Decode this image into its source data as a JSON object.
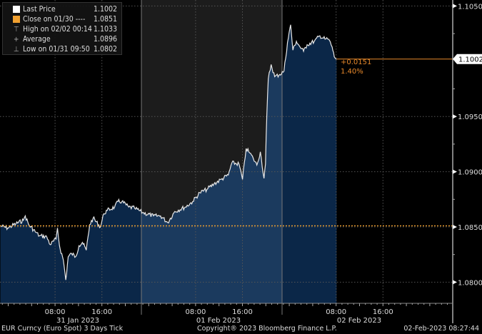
{
  "chart_data": {
    "type": "area",
    "series": [
      {
        "name": "Last Price",
        "points": [
          [
            "2023-01-30T22:40",
            1.0851
          ],
          [
            "2023-01-30T23:55",
            1.0849
          ],
          [
            "2023-01-31T01:20",
            1.0853
          ],
          [
            "2023-01-31T02:35",
            1.0856
          ],
          [
            "2023-01-31T02:55",
            1.086
          ],
          [
            "2023-01-31T03:30",
            1.0852
          ],
          [
            "2023-01-31T04:45",
            1.0845
          ],
          [
            "2023-01-31T05:20",
            1.0842
          ],
          [
            "2023-01-31T06:35",
            1.0841
          ],
          [
            "2023-01-31T07:10",
            1.0834
          ],
          [
            "2023-01-31T08:10",
            1.0839
          ],
          [
            "2023-01-31T08:25",
            1.0849
          ],
          [
            "2023-01-31T08:45",
            1.0833
          ],
          [
            "2023-01-31T09:25",
            1.082
          ],
          [
            "2023-01-31T09:50",
            1.0802
          ],
          [
            "2023-01-31T10:15",
            1.0823
          ],
          [
            "2023-01-31T10:50",
            1.0826
          ],
          [
            "2023-01-31T11:30",
            1.0823
          ],
          [
            "2023-01-31T12:05",
            1.0833
          ],
          [
            "2023-01-31T12:40",
            1.0836
          ],
          [
            "2023-01-31T13:20",
            1.0829
          ],
          [
            "2023-01-31T13:55",
            1.0852
          ],
          [
            "2023-01-31T14:30",
            1.0858
          ],
          [
            "2023-01-31T15:45",
            1.085
          ],
          [
            "2023-01-31T16:20",
            1.0862
          ],
          [
            "2023-01-31T16:55",
            1.0865
          ],
          [
            "2023-01-31T18:10",
            1.0868
          ],
          [
            "2023-01-31T18:45",
            1.0873
          ],
          [
            "2023-01-31T19:25",
            1.0873
          ],
          [
            "2023-01-31T20:35",
            1.0868
          ],
          [
            "2023-01-31T21:35",
            1.0867
          ],
          [
            "2023-01-31T22:58",
            1.0863
          ],
          [
            "2023-02-01T00:48",
            1.086
          ],
          [
            "2023-02-01T02:01",
            1.086
          ],
          [
            "2023-02-01T03:14",
            1.0854
          ],
          [
            "2023-02-01T04:27",
            1.0864
          ],
          [
            "2023-02-01T06:16",
            1.0868
          ],
          [
            "2023-02-01T07:30",
            1.0873
          ],
          [
            "2023-02-01T08:43",
            1.0881
          ],
          [
            "2023-02-01T09:56",
            1.0884
          ],
          [
            "2023-02-01T11:09",
            1.0889
          ],
          [
            "2023-02-01T12:22",
            1.0893
          ],
          [
            "2023-02-01T13:35",
            1.0897
          ],
          [
            "2023-02-01T14:12",
            1.0908
          ],
          [
            "2023-02-01T15:25",
            1.0907
          ],
          [
            "2023-02-01T16:01",
            1.0893
          ],
          [
            "2023-02-01T16:38",
            1.0921
          ],
          [
            "2023-02-01T17:15",
            1.0917
          ],
          [
            "2023-02-01T17:51",
            1.0912
          ],
          [
            "2023-02-01T18:28",
            1.0906
          ],
          [
            "2023-02-01T19:04",
            1.0918
          ],
          [
            "2023-02-01T19:41",
            1.0894
          ],
          [
            "2023-02-01T19:56",
            1.0907
          ],
          [
            "2023-02-01T20:10",
            1.0952
          ],
          [
            "2023-02-01T20:25",
            1.0984
          ],
          [
            "2023-02-01T20:54",
            1.0997
          ],
          [
            "2023-02-01T21:31",
            1.0986
          ],
          [
            "2023-02-01T22:22",
            1.0988
          ],
          [
            "2023-02-01T23:06",
            1.0991
          ],
          [
            "2023-02-01T23:42",
            1.1017
          ],
          [
            "2023-02-02T00:14",
            1.1033
          ],
          [
            "2023-02-02T00:37",
            1.101
          ],
          [
            "2023-02-02T01:13",
            1.1018
          ],
          [
            "2023-02-02T01:50",
            1.1013
          ],
          [
            "2023-02-02T02:26",
            1.1009
          ],
          [
            "2023-02-02T03:03",
            1.1015
          ],
          [
            "2023-02-02T04:16",
            1.1018
          ],
          [
            "2023-02-02T05:14",
            1.1023
          ],
          [
            "2023-02-02T06:06",
            1.102
          ],
          [
            "2023-02-02T06:42",
            1.102
          ],
          [
            "2023-02-02T07:19",
            1.1013
          ],
          [
            "2023-02-02T07:41",
            1.1004
          ],
          [
            "2023-02-02T08:05",
            1.1002
          ]
        ]
      }
    ],
    "ylim": [
      1.0785,
      1.1055
    ],
    "yticks": [
      "1.1050",
      "1.0950",
      "1.0900",
      "1.0850",
      "1.0800"
    ],
    "xticks": [
      {
        "label": "08:00",
        "t": "2023-01-31T08:00"
      },
      {
        "label": "16:00",
        "t": "2023-01-31T16:00"
      },
      {
        "label": "08:00",
        "t": "2023-02-01T08:00"
      },
      {
        "label": "16:00",
        "t": "2023-02-01T16:00"
      },
      {
        "label": "08:00",
        "t": "2023-02-02T08:00"
      },
      {
        "label": "16:00",
        "t": "2023-02-02T16:00"
      }
    ],
    "date_labels": [
      "31 Jan 2023",
      "01 Feb 2023",
      "02 Feb 2023"
    ],
    "close_line": 1.0851,
    "last_price": 1.1002,
    "last_price_label": "1.1002",
    "change": "+0.0151",
    "change_pct": "1.40%",
    "grid": true,
    "legend_position": "top-left",
    "colors": {
      "line": "#e8e8e8",
      "fill": "#0b2748",
      "fill_shaded": "#1b3a5e",
      "close": "#f0a030",
      "last": "#e8892b",
      "grid": "#555555",
      "session_shade": "#1c1c1c"
    }
  },
  "legend": {
    "items": [
      {
        "label": "Last Price",
        "value": "1.1002",
        "icon": "white-square"
      },
      {
        "label": "Close on 01/30 ----",
        "value": "1.0851",
        "icon": "orange-square"
      },
      {
        "label": "High on 02/02 00:14",
        "value": "1.1033",
        "icon": "high-marker"
      },
      {
        "label": "Average",
        "value": "1.0896",
        "icon": "average-marker"
      },
      {
        "label": "Low on 01/31 09:50",
        "value": "1.0802",
        "icon": "low-marker"
      }
    ]
  },
  "footer": {
    "security": "EUR Curncy (Euro Spot) 3 Days  Tick",
    "copyright": "Copyright® 2023 Bloomberg Finance L.P.",
    "timestamp": "02-Feb-2023 08:27:44"
  }
}
